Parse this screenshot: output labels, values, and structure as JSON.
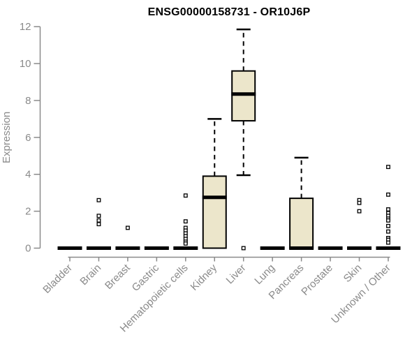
{
  "chart_data": {
    "type": "boxplot",
    "title": "ENSG00000158731 - OR10J6P",
    "xlabel": "",
    "ylabel": "Expression",
    "ylim": [
      0,
      12
    ],
    "yticks": [
      0,
      2,
      4,
      6,
      8,
      10,
      12
    ],
    "grid": false,
    "legend": "none",
    "colors": {
      "box_fill": "#ece6cb",
      "box_outline": "#000000",
      "axis": "#8a8a8a",
      "tick_text": "#8a8a8a",
      "title_text": "#000000",
      "outlier_fill": "#ffffff"
    },
    "categories": [
      "Bladder",
      "Brain",
      "Breast",
      "Gastric",
      "Hematopoietic cells",
      "Kidney",
      "Liver",
      "Lung",
      "Pancreas",
      "Prostate",
      "Skin",
      "Unknown / Other"
    ],
    "boxes": [
      {
        "category": "Bladder",
        "q1": 0,
        "median": 0,
        "q3": 0,
        "whisker_low": 0,
        "whisker_high": 0,
        "outliers": []
      },
      {
        "category": "Brain",
        "q1": 0,
        "median": 0,
        "q3": 0,
        "whisker_low": 0,
        "whisker_high": 0,
        "outliers": [
          2.6,
          1.75,
          1.5,
          1.3
        ]
      },
      {
        "category": "Breast",
        "q1": 0,
        "median": 0,
        "q3": 0,
        "whisker_low": 0,
        "whisker_high": 0,
        "outliers": [
          1.1
        ]
      },
      {
        "category": "Gastric",
        "q1": 0,
        "median": 0,
        "q3": 0,
        "whisker_low": 0,
        "whisker_high": 0,
        "outliers": []
      },
      {
        "category": "Hematopoietic cells",
        "q1": 0,
        "median": 0,
        "q3": 0,
        "whisker_low": 0,
        "whisker_high": 0,
        "outliers": [
          2.85,
          1.45,
          1.1,
          0.95,
          0.8,
          0.65,
          0.5,
          0.35,
          0.25
        ]
      },
      {
        "category": "Kidney",
        "q1": 0,
        "median": 2.75,
        "q3": 3.9,
        "whisker_low": 0,
        "whisker_high": 7.0,
        "outliers": []
      },
      {
        "category": "Liver",
        "q1": 6.9,
        "median": 8.35,
        "q3": 9.6,
        "whisker_low": 3.95,
        "whisker_high": 11.85,
        "outliers": [
          0
        ]
      },
      {
        "category": "Lung",
        "q1": 0,
        "median": 0,
        "q3": 0,
        "whisker_low": 0,
        "whisker_high": 0,
        "outliers": []
      },
      {
        "category": "Pancreas",
        "q1": 0,
        "median": 0,
        "q3": 2.7,
        "whisker_low": 0,
        "whisker_high": 4.9,
        "outliers": []
      },
      {
        "category": "Prostate",
        "q1": 0,
        "median": 0,
        "q3": 0,
        "whisker_low": 0,
        "whisker_high": 0,
        "outliers": []
      },
      {
        "category": "Skin",
        "q1": 0,
        "median": 0,
        "q3": 0,
        "whisker_low": 0,
        "whisker_high": 0,
        "outliers": [
          2.6,
          2.45,
          2.0
        ]
      },
      {
        "category": "Unknown / Other",
        "q1": 0,
        "median": 0,
        "q3": 0,
        "whisker_low": 0,
        "whisker_high": 0,
        "outliers": [
          4.4,
          2.9,
          2.1,
          1.9,
          1.75,
          1.6,
          1.5,
          1.2,
          0.9,
          0.55,
          0.45,
          0.3
        ]
      }
    ]
  }
}
